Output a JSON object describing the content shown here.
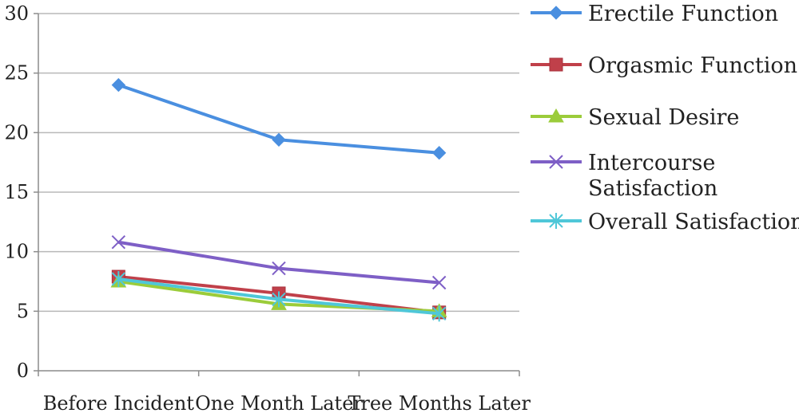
{
  "chart_data": {
    "type": "line",
    "title": "",
    "xlabel": "",
    "ylabel": "",
    "categories": [
      "Before Incident",
      "One Month Later",
      "Tree Months Later"
    ],
    "ylim": [
      0,
      30
    ],
    "yticks": [
      "0",
      "5",
      "10",
      "15",
      "20",
      "25",
      "30"
    ],
    "grid": true,
    "legend_position": "right",
    "series": [
      {
        "name": "Erectile Function",
        "values": [
          24.0,
          19.4,
          18.3
        ],
        "color": "#4a8fe0",
        "marker": "diamond"
      },
      {
        "name": "Orgasmic Function",
        "values": [
          7.9,
          6.5,
          4.9
        ],
        "color": "#c0404a",
        "marker": "square"
      },
      {
        "name": "Sexual Desire",
        "values": [
          7.5,
          5.6,
          5.0
        ],
        "color": "#9bcc3a",
        "marker": "triangle"
      },
      {
        "name": "Intercourse Satisfaction",
        "values": [
          10.8,
          8.6,
          7.4
        ],
        "color": "#7e5fc6",
        "marker": "x"
      },
      {
        "name": "Overall Satisfaction",
        "values": [
          7.7,
          6.0,
          4.8
        ],
        "color": "#4fc7d8",
        "marker": "star"
      }
    ]
  }
}
